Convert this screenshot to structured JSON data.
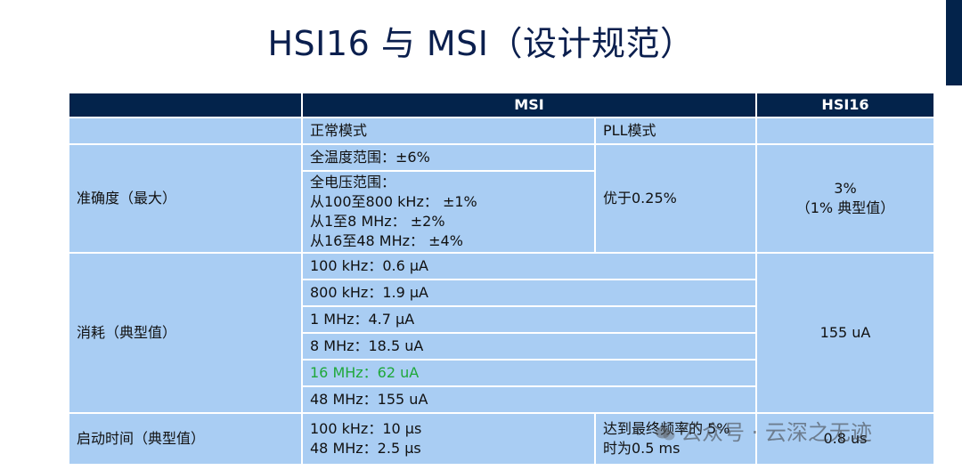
{
  "title": "HSI16 与 MSI（设计规范）",
  "header": {
    "empty": "",
    "msi": "MSI",
    "hsi16": "HSI16"
  },
  "subheader": {
    "normal_mode": "正常模式",
    "pll_mode": "PLL模式"
  },
  "accuracy": {
    "label": "准确度（最大）",
    "full_temp": "全温度范围：±6%",
    "full_voltage": "全电压范围：\n从100至800 kHz： ±1%\n从1至8 MHz： ±2%\n从16至48 MHz： ±4%",
    "pll": "优于0.25%",
    "hsi16": "3%\n（1% 典型值）"
  },
  "consumption": {
    "label": "消耗（典型值）",
    "rows": [
      "100 kHz：0.6 μA",
      "800 kHz：1.9 μA",
      "1 MHz：4.7 μA",
      "8 MHz：18.5 uA",
      "16 MHz：62 uA",
      "48 MHz：155 uA"
    ],
    "highlight_color": "#1fa83a",
    "hsi16": "155 uA"
  },
  "startup": {
    "label": "启动时间（典型值）",
    "normal": "100 kHz：10 μs\n48 MHz：2.5 μs",
    "pll": "达到最终频率的 5%\n时为0.5 ms",
    "hsi16": "0.8 us"
  },
  "watermark": "公众号 · 云深之无迹",
  "colors": {
    "header_bg": "#03234b",
    "cell_bg": "#a9cdf3",
    "title": "#0b1f4e"
  }
}
